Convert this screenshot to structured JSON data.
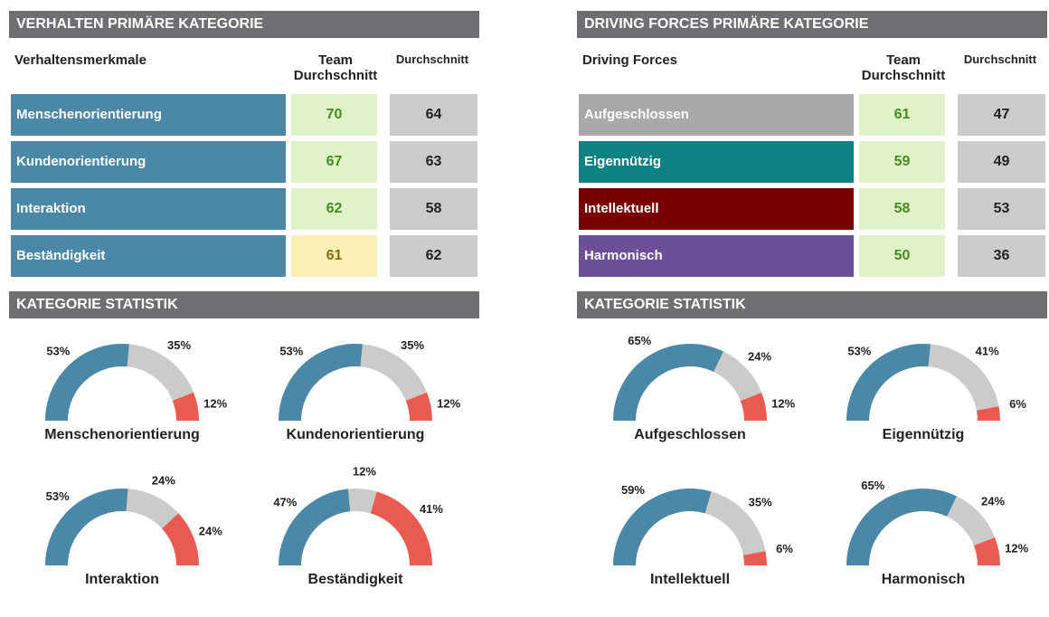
{
  "colors": {
    "header_band": "#6e6f73",
    "blue": "#4b88a8",
    "grey": "#cbcbc9",
    "red": "#e95b50",
    "green_cell": "#dff2c8",
    "green_text": "#4b8a23",
    "yellow_cell": "#fcefb5",
    "yellow_text": "#8a6a1e"
  },
  "left": {
    "section_title": "VERHALTEN PRIMÄRE KATEGORIE",
    "col_label": "Verhaltensmerkmale",
    "col_team": "Team Durchschnitt",
    "col_avg": "Durchschnitt",
    "rows": [
      {
        "label": "Menschenorientierung",
        "team": "70",
        "avg": "64",
        "label_color": "#4b88a8",
        "team_bg": "#dff2c8",
        "team_fg": "#4b8a23"
      },
      {
        "label": "Kundenorientierung",
        "team": "67",
        "avg": "63",
        "label_color": "#4b88a8",
        "team_bg": "#dff2c8",
        "team_fg": "#4b8a23"
      },
      {
        "label": "Interaktion",
        "team": "62",
        "avg": "58",
        "label_color": "#4b88a8",
        "team_bg": "#dff2c8",
        "team_fg": "#4b8a23"
      },
      {
        "label": "Beständigkeit",
        "team": "61",
        "avg": "62",
        "label_color": "#4b88a8",
        "team_bg": "#fcefb5",
        "team_fg": "#8a6a1e"
      }
    ],
    "stats_title": "KATEGORIE STATISTIK"
  },
  "right": {
    "section_title": "DRIVING FORCES PRIMÄRE KATEGORIE",
    "col_label": "Driving Forces",
    "col_team": "Team Durchschnitt",
    "col_avg": "Durchschnitt",
    "rows": [
      {
        "label": "Aufgeschlossen",
        "team": "61",
        "avg": "47",
        "label_color": "#a9a9a9",
        "team_bg": "#dff2c8",
        "team_fg": "#4b8a23"
      },
      {
        "label": "Eigennützig",
        "team": "59",
        "avg": "49",
        "label_color": "#0e8282",
        "team_bg": "#dff2c8",
        "team_fg": "#4b8a23"
      },
      {
        "label": "Intellektuell",
        "team": "58",
        "avg": "53",
        "label_color": "#7a0000",
        "team_bg": "#dff2c8",
        "team_fg": "#4b8a23"
      },
      {
        "label": "Harmonisch",
        "team": "50",
        "avg": "36",
        "label_color": "#6d4f98",
        "team_bg": "#dff2c8",
        "team_fg": "#4b8a23"
      }
    ],
    "stats_title": "KATEGORIE STATISTIK"
  },
  "chart_data": [
    {
      "type": "gauge",
      "title": "Menschenorientierung",
      "segments": [
        {
          "value": 53,
          "label": "53%",
          "color": "#4b88a8"
        },
        {
          "value": 35,
          "label": "35%",
          "color": "#cbcbc9"
        },
        {
          "value": 12,
          "label": "12%",
          "color": "#e95b50"
        }
      ]
    },
    {
      "type": "gauge",
      "title": "Kundenorientierung",
      "segments": [
        {
          "value": 53,
          "label": "53%",
          "color": "#4b88a8"
        },
        {
          "value": 35,
          "label": "35%",
          "color": "#cbcbc9"
        },
        {
          "value": 12,
          "label": "12%",
          "color": "#e95b50"
        }
      ]
    },
    {
      "type": "gauge",
      "title": "Interaktion",
      "segments": [
        {
          "value": 53,
          "label": "53%",
          "color": "#4b88a8"
        },
        {
          "value": 24,
          "label": "24%",
          "color": "#cbcbc9"
        },
        {
          "value": 24,
          "label": "24%",
          "color": "#e95b50"
        }
      ]
    },
    {
      "type": "gauge",
      "title": "Beständigkeit",
      "segments": [
        {
          "value": 47,
          "label": "47%",
          "color": "#4b88a8"
        },
        {
          "value": 12,
          "label": "12%",
          "color": "#cbcbc9"
        },
        {
          "value": 41,
          "label": "41%",
          "color": "#e95b50"
        }
      ]
    },
    {
      "type": "gauge",
      "title": "Aufgeschlossen",
      "segments": [
        {
          "value": 65,
          "label": "65%",
          "color": "#4b88a8"
        },
        {
          "value": 24,
          "label": "24%",
          "color": "#cbcbc9"
        },
        {
          "value": 12,
          "label": "12%",
          "color": "#e95b50"
        }
      ]
    },
    {
      "type": "gauge",
      "title": "Eigennützig",
      "segments": [
        {
          "value": 53,
          "label": "53%",
          "color": "#4b88a8"
        },
        {
          "value": 41,
          "label": "41%",
          "color": "#cbcbc9"
        },
        {
          "value": 6,
          "label": "6%",
          "color": "#e95b50"
        }
      ]
    },
    {
      "type": "gauge",
      "title": "Intellektuell",
      "segments": [
        {
          "value": 59,
          "label": "59%",
          "color": "#4b88a8"
        },
        {
          "value": 35,
          "label": "35%",
          "color": "#cbcbc9"
        },
        {
          "value": 6,
          "label": "6%",
          "color": "#e95b50"
        }
      ]
    },
    {
      "type": "gauge",
      "title": "Harmonisch",
      "segments": [
        {
          "value": 65,
          "label": "65%",
          "color": "#4b88a8"
        },
        {
          "value": 24,
          "label": "24%",
          "color": "#cbcbc9"
        },
        {
          "value": 12,
          "label": "12%",
          "color": "#e95b50"
        }
      ]
    }
  ]
}
